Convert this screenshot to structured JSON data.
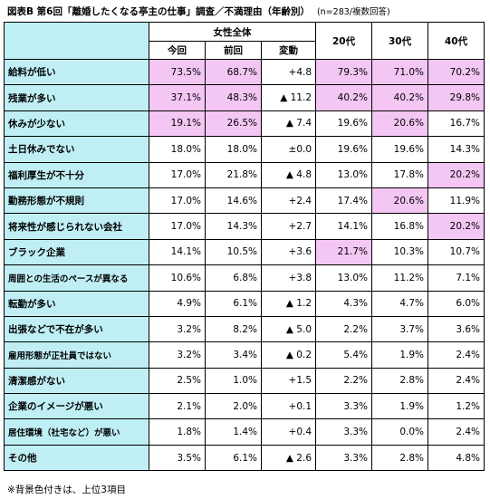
{
  "title": "図表B 第6回「離婚したくなる亭主の仕事」調査／不満理由（年齢別）",
  "subtitle": "(n=283/複数回答)",
  "header": {
    "group": "女性全体",
    "current": "今回",
    "previous": "前回",
    "change": "変動",
    "age20": "20代",
    "age30": "30代",
    "age40": "40代"
  },
  "rows": [
    {
      "label": "給料が低い",
      "current": "73.5%",
      "previous": "68.7%",
      "change": "+4.8",
      "age20": "79.3%",
      "age30": "71.0%",
      "age40": "70.2%"
    },
    {
      "label": "残業が多い",
      "current": "37.1%",
      "previous": "48.3%",
      "change": "▲ 11.2",
      "age20": "40.2%",
      "age30": "40.2%",
      "age40": "29.8%"
    },
    {
      "label": "休みが少ない",
      "current": "19.1%",
      "previous": "26.5%",
      "change": "▲ 7.4",
      "age20": "19.6%",
      "age30": "20.6%",
      "age40": "16.7%"
    },
    {
      "label": "土日休みでない",
      "current": "18.0%",
      "previous": "18.0%",
      "change": "±0.0",
      "age20": "19.6%",
      "age30": "19.6%",
      "age40": "14.3%"
    },
    {
      "label": "福利厚生が不十分",
      "current": "17.0%",
      "previous": "21.8%",
      "change": "▲ 4.8",
      "age20": "13.0%",
      "age30": "17.8%",
      "age40": "20.2%"
    },
    {
      "label": "勤務形態が不規則",
      "current": "17.0%",
      "previous": "14.6%",
      "change": "+2.4",
      "age20": "17.4%",
      "age30": "20.6%",
      "age40": "11.9%"
    },
    {
      "label": "将来性が感じられない会社",
      "current": "17.0%",
      "previous": "14.3%",
      "change": "+2.7",
      "age20": "14.1%",
      "age30": "16.8%",
      "age40": "20.2%"
    },
    {
      "label": "ブラック企業",
      "current": "14.1%",
      "previous": "10.5%",
      "change": "+3.6",
      "age20": "21.7%",
      "age30": "10.3%",
      "age40": "10.7%"
    },
    {
      "label": "周囲との生活のペースが異なる",
      "current": "10.6%",
      "previous": "6.8%",
      "change": "+3.8",
      "age20": "13.0%",
      "age30": "11.2%",
      "age40": "7.1%"
    },
    {
      "label": "転勤が多い",
      "current": "4.9%",
      "previous": "6.1%",
      "change": "▲ 1.2",
      "age20": "4.3%",
      "age30": "4.7%",
      "age40": "6.0%"
    },
    {
      "label": "出張などで不在が多い",
      "current": "3.2%",
      "previous": "8.2%",
      "change": "▲ 5.0",
      "age20": "2.2%",
      "age30": "3.7%",
      "age40": "3.6%"
    },
    {
      "label": "雇用形態が正社員ではない",
      "current": "3.2%",
      "previous": "3.4%",
      "change": "▲ 0.2",
      "age20": "5.4%",
      "age30": "1.9%",
      "age40": "2.4%"
    },
    {
      "label": "清潔感がない",
      "current": "2.5%",
      "previous": "1.0%",
      "change": "+1.5",
      "age20": "2.2%",
      "age30": "2.8%",
      "age40": "2.4%"
    },
    {
      "label": "企業のイメージが悪い",
      "current": "2.1%",
      "previous": "2.0%",
      "change": "+0.1",
      "age20": "3.3%",
      "age30": "1.9%",
      "age40": "1.2%"
    },
    {
      "label": "居住環境（社宅など）が悪い",
      "current": "1.8%",
      "previous": "1.4%",
      "change": "+0.4",
      "age20": "3.3%",
      "age30": "0.0%",
      "age40": "2.4%"
    },
    {
      "label": "その他",
      "current": "3.5%",
      "previous": "6.1%",
      "change": "▲ 2.6",
      "age20": "3.3%",
      "age30": "2.8%",
      "age40": "4.8%"
    }
  ],
  "highlight_color": "#f4c6f3",
  "label_color": "#bfeff5",
  "note": "※背景色付きは、上位3項目"
}
